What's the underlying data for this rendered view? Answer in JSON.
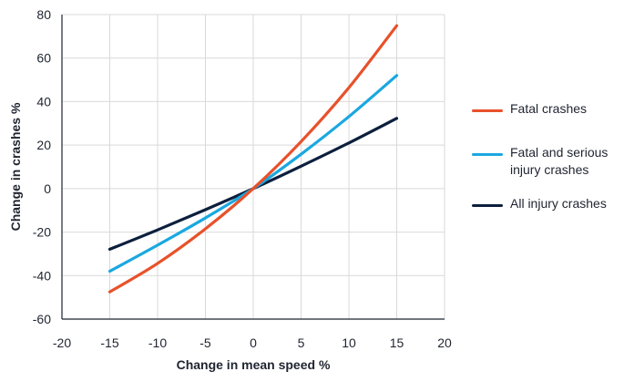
{
  "colors": {
    "fatal": "#e8512a",
    "fatal_serious": "#1aa8e0",
    "all_injury": "#0c1f3d",
    "grid": "#d9d9d9",
    "axis": "#1f2430"
  },
  "chart_data": {
    "type": "line",
    "title": "",
    "xlabel": "Change in mean speed %",
    "ylabel": "Change in crashes %",
    "xlim": [
      -20,
      20
    ],
    "ylim": [
      -60,
      80
    ],
    "xticks": [
      -20,
      -15,
      -10,
      -5,
      0,
      5,
      10,
      15,
      20
    ],
    "yticks": [
      -60,
      -40,
      -20,
      0,
      20,
      40,
      60,
      80
    ],
    "grid": true,
    "legend_position": "right",
    "x": [
      -15,
      -10,
      -5,
      0,
      5,
      10,
      15
    ],
    "series": [
      {
        "name": "Fatal crashes",
        "color_key": "fatal",
        "values": [
          -47.5,
          -34.4,
          -18.5,
          0,
          21.6,
          46.4,
          74.9
        ]
      },
      {
        "name": "Fatal and serious\ninjury crashes",
        "color_key": "fatal_serious",
        "values": [
          -38,
          -26,
          -13.5,
          0,
          15.8,
          33.1,
          52
        ]
      },
      {
        "name": "All injury crashes",
        "color_key": "all_injury",
        "values": [
          -27.9,
          -19,
          -9.7,
          0,
          10.3,
          21,
          32.3
        ]
      }
    ]
  }
}
